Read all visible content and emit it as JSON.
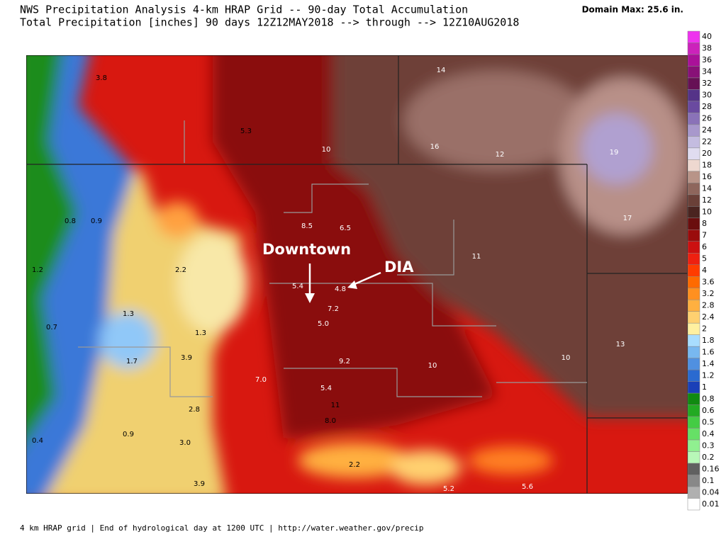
{
  "header": {
    "title": "NWS Precipitation Analysis 4-km HRAP Grid -- 90-day Total Accumulation",
    "subtitle": "Total Precipitation [inches] 90 days 12Z12MAY2018 --> through --> 12Z10AUG2018",
    "domain_max": "Domain Max: 25.6 in."
  },
  "annotations": {
    "downtown": "Downtown",
    "dia": "DIA"
  },
  "map_labels": [
    "3.8",
    "5.3",
    "10",
    "14",
    "16",
    "12",
    "19",
    "17",
    "0.8",
    "0.9",
    "8.5",
    "6.5",
    "11",
    "1.2",
    "2.2",
    "5.4",
    "4.8",
    "7.2",
    "1.3",
    "5.0",
    "0.7",
    "1.3",
    "13",
    "3.9",
    "1.7",
    "9.2",
    "10",
    "10",
    "7.0",
    "5.4",
    "11",
    "2.8",
    "8.0",
    "0.9",
    "0.4",
    "3.0",
    "2.2",
    "3.9",
    "5.2",
    "5.6"
  ],
  "legend": [
    {
      "label": "40",
      "color": "#ee33ee"
    },
    {
      "label": "38",
      "color": "#cc22bb"
    },
    {
      "label": "36",
      "color": "#aa1199"
    },
    {
      "label": "34",
      "color": "#881177"
    },
    {
      "label": "32",
      "color": "#661155"
    },
    {
      "label": "30",
      "color": "#553388"
    },
    {
      "label": "28",
      "color": "#6a4aa0"
    },
    {
      "label": "26",
      "color": "#8a72b8"
    },
    {
      "label": "24",
      "color": "#a898cc"
    },
    {
      "label": "22",
      "color": "#c4bce0"
    },
    {
      "label": "20",
      "color": "#e0dcf0"
    },
    {
      "label": "18",
      "color": "#eed8d0"
    },
    {
      "label": "16",
      "color": "#b89488"
    },
    {
      "label": "14",
      "color": "#8e665c"
    },
    {
      "label": "12",
      "color": "#6a4038"
    },
    {
      "label": "10",
      "color": "#4a2420"
    },
    {
      "label": "8",
      "color": "#6a0e0e"
    },
    {
      "label": "7",
      "color": "#9a0c0c"
    },
    {
      "label": "6",
      "color": "#cc1010"
    },
    {
      "label": "5",
      "color": "#ee2010"
    },
    {
      "label": "4",
      "color": "#ff3c00"
    },
    {
      "label": "3.6",
      "color": "#ff6a00"
    },
    {
      "label": "3.2",
      "color": "#ff9020"
    },
    {
      "label": "2.8",
      "color": "#ffb040"
    },
    {
      "label": "2.4",
      "color": "#ffd070"
    },
    {
      "label": "2",
      "color": "#fff0a0"
    },
    {
      "label": "1.8",
      "color": "#a8ddff"
    },
    {
      "label": "1.6",
      "color": "#78b8f0"
    },
    {
      "label": "1.4",
      "color": "#5090e0"
    },
    {
      "label": "1.2",
      "color": "#2a6ad0"
    },
    {
      "label": "1",
      "color": "#1a40b8"
    },
    {
      "label": "0.8",
      "color": "#108a10"
    },
    {
      "label": "0.6",
      "color": "#22aa22"
    },
    {
      "label": "0.5",
      "color": "#44cc44"
    },
    {
      "label": "0.4",
      "color": "#66e066"
    },
    {
      "label": "0.3",
      "color": "#90f090"
    },
    {
      "label": "0.2",
      "color": "#b8f8b8"
    },
    {
      "label": "0.16",
      "color": "#606060"
    },
    {
      "label": "0.1",
      "color": "#888888"
    },
    {
      "label": "0.04",
      "color": "#b0b0b0"
    },
    {
      "label": "0.01",
      "color": "#ffffff"
    }
  ],
  "footer": "4 km HRAP grid | End of hydrological day at 1200 UTC | http://water.weather.gov/precip"
}
